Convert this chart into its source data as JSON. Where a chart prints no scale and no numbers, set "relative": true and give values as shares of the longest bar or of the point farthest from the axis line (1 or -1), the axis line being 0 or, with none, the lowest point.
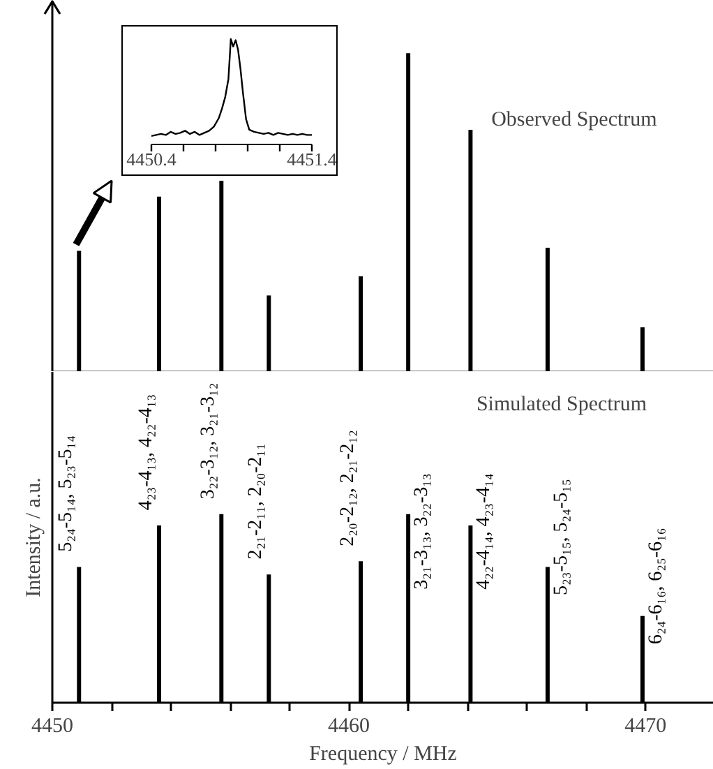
{
  "chart_data": [
    {
      "type": "bar",
      "title": "Observed Spectrum",
      "relative": true,
      "x": [
        4450.9,
        4453.6,
        4455.7,
        4457.3,
        4460.4,
        4462.0,
        4464.1,
        4466.7,
        4469.9
      ],
      "values": [
        0.38,
        0.55,
        0.6,
        0.24,
        0.3,
        1,
        0.76,
        0.39,
        0.14
      ],
      "color": "#000000",
      "xlim": [
        4450,
        4472.3
      ],
      "tick_labels": false
    },
    {
      "type": "bar",
      "title": "Simulated Spectrum",
      "relative": true,
      "x": [
        4450.9,
        4453.6,
        4455.7,
        4457.3,
        4460.4,
        4462.0,
        4464.1,
        4466.7,
        4469.9
      ],
      "values": [
        0.72,
        0.94,
        1,
        0.68,
        0.75,
        1,
        0.94,
        0.72,
        0.46
      ],
      "color": "#000000",
      "xlim": [
        4450,
        4472.3
      ],
      "xticks": [
        4450,
        {
          "value": 4452,
          "label": null
        },
        {
          "value": 4454,
          "label": null
        },
        {
          "value": 4456,
          "label": null
        },
        {
          "value": 4458,
          "label": null
        },
        4460,
        {
          "value": 4462,
          "label": null
        },
        {
          "value": 4464,
          "label": null
        },
        {
          "value": 4466,
          "label": null
        },
        {
          "value": 4468,
          "label": null
        },
        4470
      ],
      "xlabel": "Frequency / MHz",
      "ylabel": "Intensity / a.u.",
      "tick_labels": "x",
      "annotations": [
        {
          "text": "5₂₄-5₁₄, 5₂₃-5₁₄",
          "x": 4450.9,
          "y": 0.72
        },
        {
          "text": "4₂₃-4₁₃, 4₂₂-4₁₃",
          "x": 4453.6,
          "y": 0.94
        },
        {
          "text": "3₂₂-3₁₂, 3₂₁-3₁₂",
          "x": 4455.7,
          "y": 1
        },
        {
          "text": "2₂₁-2₁₁, 2₂₀-2₁₁",
          "x": 4457.3,
          "y": 0.68
        },
        {
          "text": "2₂₀-2₁₂, 2₂₁-2₁₂",
          "x": 4460.4,
          "y": 0.75
        },
        {
          "text": "3₂₁-3₁₃, 3₂₂-3₁₃",
          "x": 4462.0,
          "y": 1
        },
        {
          "text": "4₂₂-4₁₄, 4₂₃-4₁₄",
          "x": 4464.1,
          "y": 0.94
        },
        {
          "text": "5₂₃-5₁₅, 5₂₄-5₁₅",
          "x": 4466.7,
          "y": 0.72
        },
        {
          "text": "6₂₄-6₁₆, 6₂₅-6₁₆",
          "x": 4469.9,
          "y": 0.46
        }
      ]
    },
    {
      "type": "line",
      "relative": true,
      "x": [
        4450.4,
        4450.43,
        4450.46,
        4450.49,
        4450.52,
        4450.55,
        4450.58,
        4450.61,
        4450.64,
        4450.67,
        4450.7,
        4450.73,
        4450.76,
        4450.79,
        4450.82,
        4450.84,
        4450.86,
        4450.88,
        4450.895,
        4450.91,
        4450.925,
        4450.94,
        4450.955,
        4450.97,
        4450.99,
        4451.01,
        4451.04,
        4451.07,
        4451.1,
        4451.13,
        4451.16,
        4451.19,
        4451.22,
        4451.25,
        4451.28,
        4451.31,
        4451.34,
        4451.37,
        4451.4
      ],
      "values": [
        0.08,
        0.09,
        0.1,
        0.09,
        0.12,
        0.1,
        0.11,
        0.13,
        0.1,
        0.12,
        0.09,
        0.11,
        0.13,
        0.17,
        0.25,
        0.34,
        0.45,
        0.62,
        1,
        0.93,
        0.99,
        0.9,
        0.72,
        0.5,
        0.24,
        0.14,
        0.12,
        0.11,
        0.1,
        0.11,
        0.09,
        0.11,
        0.1,
        0.09,
        0.1,
        0.09,
        0.1,
        0.09,
        0.09
      ],
      "color": "#000000",
      "xlim": [
        4450.4,
        4451.4
      ],
      "xticks": [
        4450.4,
        {
          "value": 4450.6,
          "label": null
        },
        {
          "value": 4450.8,
          "label": null
        },
        {
          "value": 4451.0,
          "label": null
        },
        {
          "value": 4451.2,
          "label": null
        },
        4451.4
      ]
    }
  ]
}
